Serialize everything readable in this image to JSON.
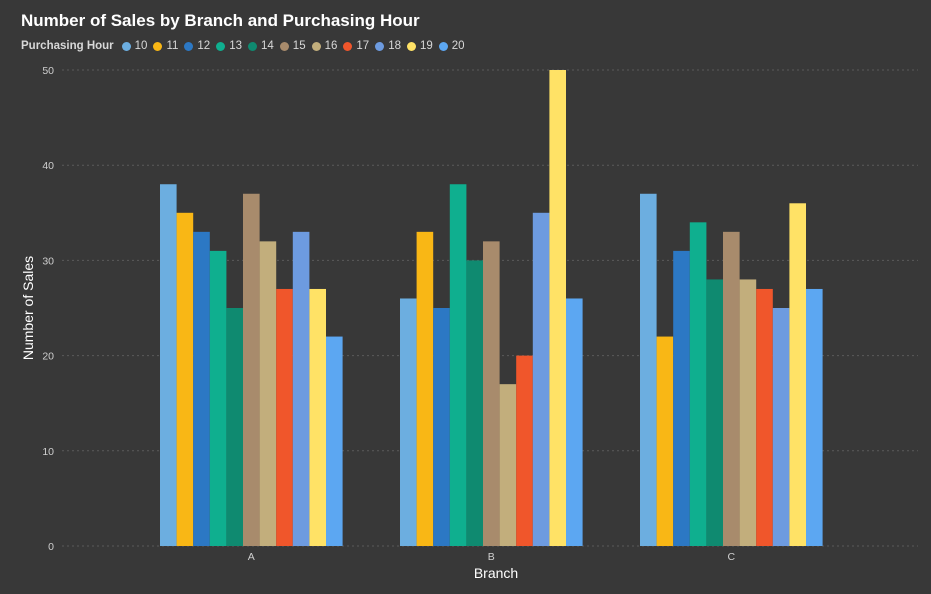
{
  "chart_data": {
    "type": "bar",
    "title": "Number of Sales by Branch and Purchasing Hour",
    "xlabel": "Branch",
    "ylabel": "Number of Sales",
    "legend_title": "Purchasing Hour",
    "legend_position": "top-left",
    "grid": true,
    "ylim": [
      0,
      50
    ],
    "yticks": [
      0,
      10,
      20,
      30,
      40,
      50
    ],
    "categories": [
      "A",
      "B",
      "C"
    ],
    "series": [
      {
        "name": "10",
        "color": "#6CAEE0",
        "values": [
          38,
          26,
          37
        ]
      },
      {
        "name": "11",
        "color": "#F9B715",
        "values": [
          35,
          33,
          22
        ]
      },
      {
        "name": "12",
        "color": "#2C78C4",
        "values": [
          33,
          25,
          31
        ]
      },
      {
        "name": "13",
        "color": "#0FAF8F",
        "values": [
          31,
          38,
          34
        ]
      },
      {
        "name": "14",
        "color": "#0F8A70",
        "values": [
          25,
          30,
          28
        ]
      },
      {
        "name": "15",
        "color": "#A88B6C",
        "values": [
          37,
          32,
          33
        ]
      },
      {
        "name": "16",
        "color": "#C2AE7C",
        "values": [
          32,
          17,
          28
        ]
      },
      {
        "name": "17",
        "color": "#F0562B",
        "values": [
          27,
          20,
          27
        ]
      },
      {
        "name": "18",
        "color": "#6D9BE0",
        "values": [
          33,
          35,
          25
        ]
      },
      {
        "name": "19",
        "color": "#FFE266",
        "values": [
          27,
          50,
          36
        ]
      },
      {
        "name": "20",
        "color": "#5CA7F2",
        "values": [
          22,
          26,
          27
        ]
      }
    ]
  }
}
